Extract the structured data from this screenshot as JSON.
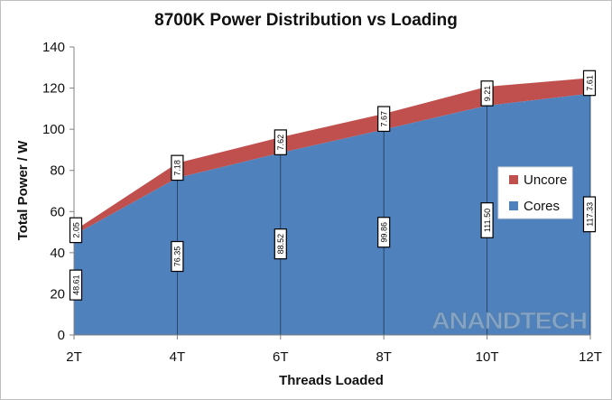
{
  "chart_data": {
    "type": "area",
    "title": "8700K Power Distribution vs Loading",
    "xlabel": "Threads Loaded",
    "ylabel": "Total Power / W",
    "categories": [
      "2T",
      "4T",
      "6T",
      "8T",
      "10T",
      "12T"
    ],
    "ylim": [
      0,
      140
    ],
    "yticks": [
      0,
      20,
      40,
      60,
      80,
      100,
      120,
      140
    ],
    "stacked": true,
    "series": [
      {
        "name": "Cores",
        "color": "#4f81bd",
        "values": [
          48.61,
          76.35,
          88.52,
          99.86,
          111.5,
          117.33
        ],
        "labels": [
          "48.61",
          "76.35",
          "88.52",
          "99.86",
          "111.50",
          "117.33"
        ]
      },
      {
        "name": "Uncore",
        "color": "#c0504d",
        "values": [
          2.05,
          7.18,
          7.62,
          7.67,
          9.21,
          7.61
        ],
        "labels": [
          "2.05",
          "7.18",
          "7.62",
          "7.67",
          "9.21",
          "7.61"
        ]
      }
    ],
    "legend": {
      "placement": "right",
      "order": [
        "Uncore",
        "Cores"
      ]
    },
    "grid": false
  },
  "watermark": {
    "text": "ANANDTECH"
  }
}
